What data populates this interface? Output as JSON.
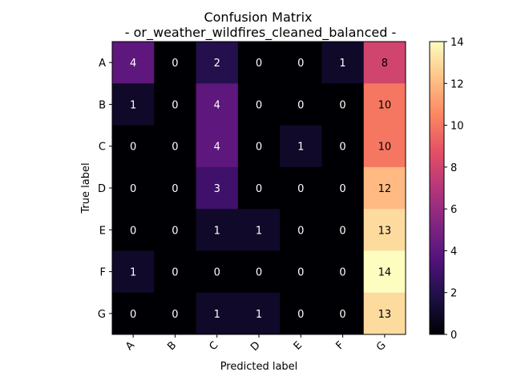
{
  "chart_data": {
    "type": "heatmap",
    "title": "Confusion Matrix",
    "subtitle": "- or_weather_wildfires_cleaned_balanced -",
    "xlabel": "Predicted label",
    "ylabel": "True label",
    "x_categories": [
      "A",
      "B",
      "C",
      "D",
      "E",
      "F",
      "G"
    ],
    "y_categories": [
      "A",
      "B",
      "C",
      "D",
      "E",
      "F",
      "G"
    ],
    "values": [
      [
        4,
        0,
        2,
        0,
        0,
        1,
        8
      ],
      [
        1,
        0,
        4,
        0,
        0,
        0,
        10
      ],
      [
        0,
        0,
        4,
        0,
        1,
        0,
        10
      ],
      [
        0,
        0,
        3,
        0,
        0,
        0,
        12
      ],
      [
        0,
        0,
        1,
        1,
        0,
        0,
        13
      ],
      [
        1,
        0,
        0,
        0,
        0,
        0,
        14
      ],
      [
        0,
        0,
        1,
        1,
        0,
        0,
        13
      ]
    ],
    "colormap": "magma",
    "vmin": 0,
    "vmax": 14,
    "colorbar_ticks": [
      0,
      2,
      4,
      6,
      8,
      10,
      12,
      14
    ]
  }
}
